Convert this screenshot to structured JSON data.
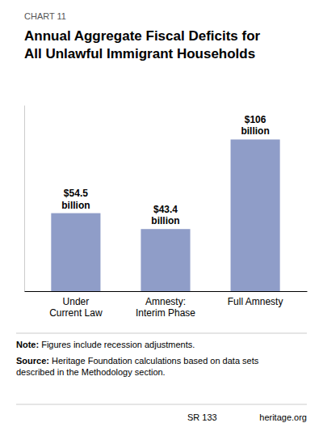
{
  "chart_data": {
    "type": "bar",
    "title": "Annual Aggregate Fiscal Deficits for\nAll Unlawful Immigrant Households",
    "annotations": [
      "CHART 11",
      "Note: Figures include recession adjustments.",
      "Source: Heritage Foundation calculations based on data sets\ndescribed in the Methodology section.",
      "SR 133",
      "heritage.org"
    ],
    "categories": [
      "Under\nCurrent Law",
      "Amnesty:\nInterim Phase",
      "Full Amnesty"
    ],
    "values": [
      54.5,
      43.4,
      106
    ],
    "value_labels": [
      "$54.5\nbillion",
      "$43.4\nbillion",
      "$106\nbillion"
    ],
    "data_labels": true,
    "color": "#8F9DC8",
    "ylim": [
      0,
      130
    ],
    "grid": false,
    "tick_labels": "x"
  }
}
